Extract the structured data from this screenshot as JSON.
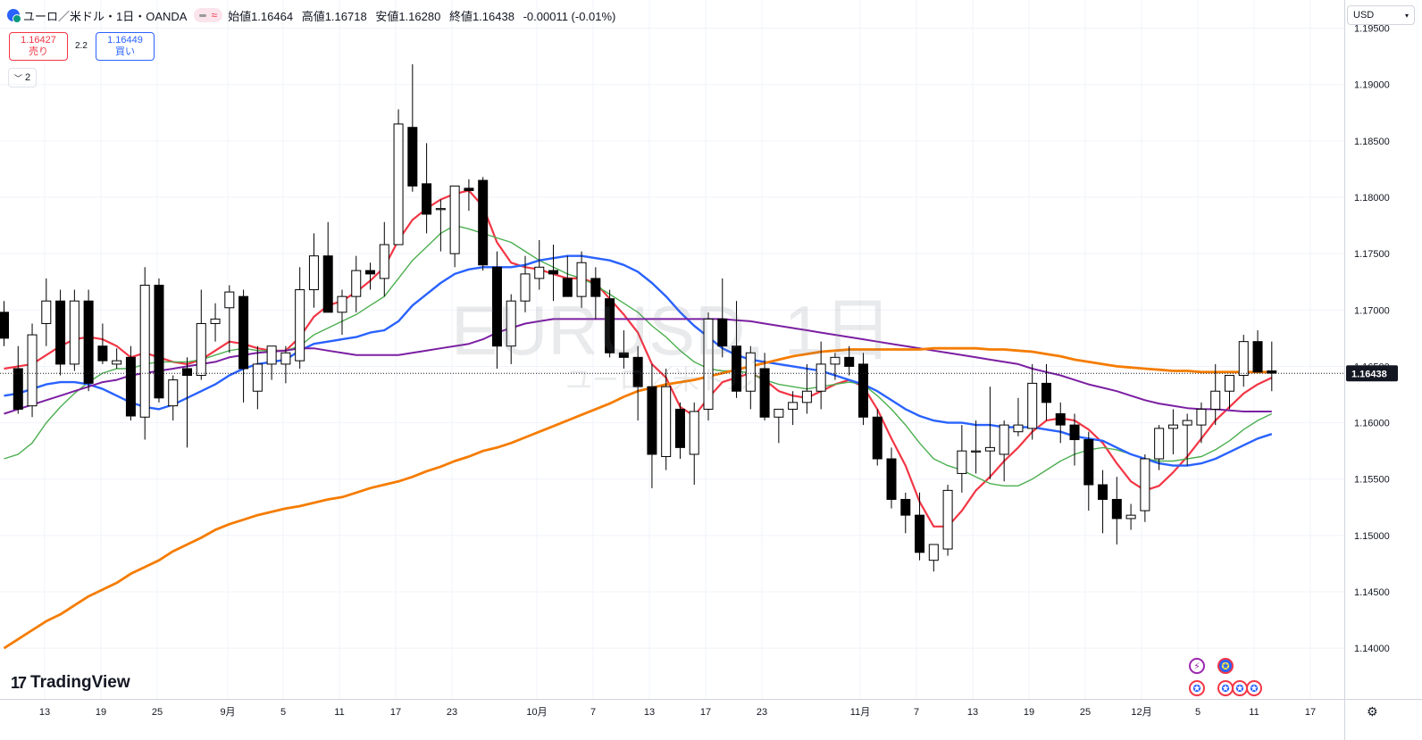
{
  "header": {
    "title": "ユーロ／米ドル・1日・OANDA",
    "approx_symbol": "≈",
    "ohlc": {
      "open": "始値1.16464",
      "high": "高値1.16718",
      "low": "安値1.16280",
      "close": "終値1.16438",
      "change": "-0.00011 (-0.01%)"
    }
  },
  "trade": {
    "sell_price": "1.16427",
    "sell_label": "売り",
    "spread": "2.2",
    "buy_price": "1.16449",
    "buy_label": "買い"
  },
  "indicators_toggle": {
    "count": "2"
  },
  "currency_button": {
    "label": "USD"
  },
  "watermark": {
    "main": "EURUSD, 1日",
    "sub": "ユーロ／米ドル"
  },
  "logo": {
    "text": "TradingView"
  },
  "chart_data": {
    "type": "candlestick",
    "price_axis": {
      "ticks": [
        "1.19500",
        "1.19000",
        "1.18500",
        "1.18000",
        "1.17500",
        "1.17000",
        "1.16500",
        "1.16000",
        "1.15500",
        "1.15000",
        "1.14500",
        "1.14000"
      ],
      "range": [
        1.1355,
        1.1975
      ],
      "current_price": "1.16438"
    },
    "time_axis": {
      "ticks": [
        "13",
        "19",
        "25",
        "9月",
        "5",
        "11",
        "17",
        "23",
        "10月",
        "7",
        "13",
        "17",
        "23",
        "11月",
        "7",
        "13",
        "19",
        "25",
        "12月",
        "5",
        "11",
        "17"
      ]
    },
    "candles": [
      [
        1.1698,
        1.1708,
        1.1668,
        1.1675
      ],
      [
        1.1648,
        1.1668,
        1.1608,
        1.1612
      ],
      [
        1.1615,
        1.1688,
        1.1605,
        1.1678
      ],
      [
        1.1688,
        1.1728,
        1.1668,
        1.1708
      ],
      [
        1.1708,
        1.1718,
        1.1642,
        1.1652
      ],
      [
        1.1652,
        1.1718,
        1.1646,
        1.1708
      ],
      [
        1.1708,
        1.1718,
        1.1628,
        1.1635
      ],
      [
        1.1668,
        1.1688,
        1.1652,
        1.1655
      ],
      [
        1.1652,
        1.1666,
        1.1648,
        1.1655
      ],
      [
        1.1658,
        1.1668,
        1.1602,
        1.1606
      ],
      [
        1.1605,
        1.1738,
        1.1585,
        1.1722
      ],
      [
        1.1722,
        1.1728,
        1.1618,
        1.1622
      ],
      [
        1.1615,
        1.1642,
        1.1602,
        1.1638
      ],
      [
        1.1648,
        1.1658,
        1.1578,
        1.1642
      ],
      [
        1.1642,
        1.1718,
        1.1638,
        1.1688
      ],
      [
        1.1688,
        1.1706,
        1.1672,
        1.1692
      ],
      [
        1.1702,
        1.1722,
        1.1662,
        1.1716
      ],
      [
        1.1712,
        1.1718,
        1.1618,
        1.1648
      ],
      [
        1.1628,
        1.1668,
        1.1612,
        1.1652
      ],
      [
        1.1652,
        1.1668,
        1.1638,
        1.1668
      ],
      [
        1.1652,
        1.1668,
        1.1635,
        1.1662
      ],
      [
        1.1655,
        1.1738,
        1.1648,
        1.1718
      ],
      [
        1.1718,
        1.1768,
        1.1702,
        1.1748
      ],
      [
        1.1748,
        1.1778,
        1.1698,
        1.1698
      ],
      [
        1.1698,
        1.1718,
        1.1678,
        1.1712
      ],
      [
        1.1712,
        1.1748,
        1.1698,
        1.1735
      ],
      [
        1.1735,
        1.1742,
        1.1718,
        1.1732
      ],
      [
        1.1728,
        1.1778,
        1.1712,
        1.1758
      ],
      [
        1.1758,
        1.1878,
        1.1758,
        1.1865
      ],
      [
        1.1862,
        1.1918,
        1.1805,
        1.181
      ],
      [
        1.1812,
        1.1848,
        1.1768,
        1.1785
      ],
      [
        1.179,
        1.1798,
        1.1752,
        1.179
      ],
      [
        1.175,
        1.1808,
        1.1738,
        1.181
      ],
      [
        1.1808,
        1.1816,
        1.1788,
        1.1806
      ],
      [
        1.1815,
        1.1818,
        1.1735,
        1.174
      ],
      [
        1.1738,
        1.1752,
        1.1648,
        1.1668
      ],
      [
        1.1668,
        1.1714,
        1.1652,
        1.1708
      ],
      [
        1.1708,
        1.1748,
        1.1698,
        1.1732
      ],
      [
        1.1728,
        1.1762,
        1.1718,
        1.1738
      ],
      [
        1.1735,
        1.1758,
        1.1708,
        1.1732
      ],
      [
        1.1728,
        1.1748,
        1.1712,
        1.1712
      ],
      [
        1.1712,
        1.1752,
        1.1702,
        1.1742
      ],
      [
        1.1728,
        1.1738,
        1.1692,
        1.1712
      ],
      [
        1.171,
        1.1718,
        1.1658,
        1.1662
      ],
      [
        1.1662,
        1.1682,
        1.1648,
        1.1658
      ],
      [
        1.1658,
        1.1668,
        1.1602,
        1.1632
      ],
      [
        1.1632,
        1.1652,
        1.1542,
        1.1572
      ],
      [
        1.157,
        1.1648,
        1.1558,
        1.1632
      ],
      [
        1.1612,
        1.1618,
        1.1568,
        1.1578
      ],
      [
        1.1572,
        1.1618,
        1.1545,
        1.161
      ],
      [
        1.1612,
        1.1698,
        1.1602,
        1.1692
      ],
      [
        1.1692,
        1.1728,
        1.1658,
        1.1668
      ],
      [
        1.1668,
        1.1708,
        1.1622,
        1.1628
      ],
      [
        1.1628,
        1.1668,
        1.1612,
        1.1662
      ],
      [
        1.1648,
        1.1662,
        1.1602,
        1.1605
      ],
      [
        1.1605,
        1.1612,
        1.1582,
        1.1612
      ],
      [
        1.1612,
        1.1628,
        1.1598,
        1.1618
      ],
      [
        1.1618,
        1.1652,
        1.1608,
        1.1628
      ],
      [
        1.1628,
        1.1672,
        1.1612,
        1.1652
      ],
      [
        1.1652,
        1.1662,
        1.1638,
        1.1658
      ],
      [
        1.1658,
        1.1668,
        1.1642,
        1.165
      ],
      [
        1.1652,
        1.1662,
        1.1598,
        1.1605
      ],
      [
        1.1605,
        1.1612,
        1.1562,
        1.1568
      ],
      [
        1.1568,
        1.1578,
        1.1524,
        1.1532
      ],
      [
        1.1532,
        1.1538,
        1.1502,
        1.1518
      ],
      [
        1.1518,
        1.1538,
        1.1478,
        1.1485
      ],
      [
        1.1478,
        1.1492,
        1.1468,
        1.1492
      ],
      [
        1.1488,
        1.1545,
        1.1482,
        1.154
      ],
      [
        1.1555,
        1.1598,
        1.1538,
        1.1575
      ],
      [
        1.1575,
        1.1602,
        1.1555,
        1.1575
      ],
      [
        1.1575,
        1.1632,
        1.155,
        1.1578
      ],
      [
        1.1572,
        1.1602,
        1.1548,
        1.1598
      ],
      [
        1.1592,
        1.1622,
        1.1588,
        1.1598
      ],
      [
        1.1595,
        1.1652,
        1.1585,
        1.1635
      ],
      [
        1.1635,
        1.1652,
        1.1602,
        1.1618
      ],
      [
        1.1608,
        1.1618,
        1.1582,
        1.1598
      ],
      [
        1.1598,
        1.1608,
        1.1562,
        1.1585
      ],
      [
        1.1585,
        1.1592,
        1.1522,
        1.1545
      ],
      [
        1.1545,
        1.1558,
        1.1502,
        1.1532
      ],
      [
        1.1532,
        1.1552,
        1.1492,
        1.1515
      ],
      [
        1.1515,
        1.1528,
        1.1505,
        1.1518
      ],
      [
        1.1522,
        1.1572,
        1.1512,
        1.1568
      ],
      [
        1.1568,
        1.1598,
        1.1558,
        1.1595
      ],
      [
        1.1595,
        1.1612,
        1.1572,
        1.1598
      ],
      [
        1.1598,
        1.1608,
        1.1562,
        1.1602
      ],
      [
        1.1598,
        1.1618,
        1.1582,
        1.1612
      ],
      [
        1.1612,
        1.1652,
        1.1598,
        1.1628
      ],
      [
        1.1628,
        1.1642,
        1.1612,
        1.1642
      ],
      [
        1.1642,
        1.1678,
        1.1632,
        1.1672
      ],
      [
        1.1672,
        1.1682,
        1.1645,
        1.1645
      ],
      [
        1.1646,
        1.1672,
        1.1628,
        1.1644
      ]
    ],
    "series": [
      {
        "color": "#f23645",
        "values": [
          1.1648,
          1.165,
          1.1652,
          1.166,
          1.1668,
          1.1674,
          1.1676,
          1.1674,
          1.1668,
          1.1658,
          1.1662,
          1.1658,
          1.1654,
          1.1652,
          1.1656,
          1.1664,
          1.1672,
          1.167,
          1.1666,
          1.1664,
          1.1664,
          1.1676,
          1.1694,
          1.1704,
          1.1708,
          1.1716,
          1.1726,
          1.1738,
          1.1762,
          1.178,
          1.179,
          1.1798,
          1.1803,
          1.1806,
          1.1792,
          1.176,
          1.1742,
          1.1738,
          1.1736,
          1.1732,
          1.1728,
          1.1728,
          1.1724,
          1.171,
          1.1696,
          1.168,
          1.1652,
          1.164,
          1.1614,
          1.1606,
          1.1622,
          1.1636,
          1.164,
          1.1644,
          1.1638,
          1.1628,
          1.1624,
          1.1622,
          1.1628,
          1.1634,
          1.1638,
          1.1632,
          1.1612,
          1.1586,
          1.1562,
          1.153,
          1.1508,
          1.1508,
          1.1522,
          1.154,
          1.1552,
          1.1566,
          1.1578,
          1.1592,
          1.1602,
          1.1604,
          1.1602,
          1.1594,
          1.1582,
          1.1564,
          1.1548,
          1.154,
          1.1544,
          1.1556,
          1.157,
          1.1586,
          1.1602,
          1.1614,
          1.1626,
          1.1634,
          1.164
        ]
      },
      {
        "color": "#4caf50",
        "values": [
          1.1568,
          1.1572,
          1.1582,
          1.16,
          1.1614,
          1.1626,
          1.1636,
          1.1644,
          1.1648,
          1.1648,
          1.1652,
          1.1654,
          1.1654,
          1.1654,
          1.1656,
          1.166,
          1.1664,
          1.1666,
          1.1664,
          1.1664,
          1.1664,
          1.1668,
          1.1678,
          1.1684,
          1.169,
          1.1696,
          1.1704,
          1.1712,
          1.1728,
          1.1744,
          1.1756,
          1.1768,
          1.1775,
          1.1772,
          1.1768,
          1.1764,
          1.176,
          1.1752,
          1.1744,
          1.1738,
          1.1732,
          1.1728,
          1.1722,
          1.1714,
          1.1706,
          1.1698,
          1.1686,
          1.1676,
          1.1664,
          1.1654,
          1.1648,
          1.1646,
          1.1646,
          1.1644,
          1.1638,
          1.1634,
          1.1632,
          1.163,
          1.1632,
          1.1634,
          1.1636,
          1.1634,
          1.1624,
          1.1612,
          1.1598,
          1.1582,
          1.1568,
          1.1562,
          1.1558,
          1.1552,
          1.1546,
          1.1544,
          1.1544,
          1.155,
          1.1558,
          1.1566,
          1.1572,
          1.1576,
          1.1578,
          1.1576,
          1.1572,
          1.1568,
          1.1566,
          1.1566,
          1.1568,
          1.157,
          1.1576,
          1.1584,
          1.1594,
          1.1602,
          1.1608
        ]
      },
      {
        "color": "#2962ff",
        "values": [
          1.1624,
          1.1626,
          1.163,
          1.1634,
          1.1636,
          1.1636,
          1.1634,
          1.163,
          1.1624,
          1.1618,
          1.1614,
          1.1612,
          1.1616,
          1.1622,
          1.1628,
          1.1634,
          1.1642,
          1.1648,
          1.1652,
          1.1654,
          1.1656,
          1.1664,
          1.167,
          1.1672,
          1.1674,
          1.1676,
          1.168,
          1.1682,
          1.169,
          1.1704,
          1.1714,
          1.1724,
          1.1732,
          1.1736,
          1.1738,
          1.1738,
          1.1738,
          1.174,
          1.1744,
          1.1746,
          1.1748,
          1.1748,
          1.1746,
          1.1744,
          1.174,
          1.1734,
          1.1724,
          1.1712,
          1.1698,
          1.1686,
          1.1676,
          1.1666,
          1.166,
          1.1656,
          1.1654,
          1.1652,
          1.165,
          1.1648,
          1.1646,
          1.1642,
          1.1638,
          1.1634,
          1.1628,
          1.162,
          1.1612,
          1.1606,
          1.1602,
          1.16,
          1.16,
          1.1598,
          1.1598,
          1.1596,
          1.1596,
          1.1596,
          1.1594,
          1.1592,
          1.1588,
          1.1586,
          1.1584,
          1.1578,
          1.1572,
          1.1568,
          1.1564,
          1.1562,
          1.1562,
          1.1564,
          1.1568,
          1.1574,
          1.158,
          1.1586,
          1.159
        ]
      },
      {
        "color": "#7b1fa2",
        "values": [
          1.1608,
          1.1612,
          1.1616,
          1.162,
          1.1624,
          1.1628,
          1.1632,
          1.1636,
          1.1638,
          1.1642,
          1.1644,
          1.1646,
          1.1648,
          1.165,
          1.1652,
          1.1654,
          1.1658,
          1.166,
          1.1662,
          1.1663,
          1.1664,
          1.1666,
          1.1666,
          1.1664,
          1.1662,
          1.166,
          1.166,
          1.166,
          1.166,
          1.1662,
          1.1664,
          1.1666,
          1.1668,
          1.167,
          1.1674,
          1.168,
          1.1684,
          1.1688,
          1.169,
          1.1692,
          1.1692,
          1.1692,
          1.1692,
          1.1692,
          1.1692,
          1.1692,
          1.1692,
          1.1692,
          1.1692,
          1.1692,
          1.1692,
          1.1692,
          1.1691,
          1.169,
          1.1688,
          1.1686,
          1.1684,
          1.1682,
          1.168,
          1.1678,
          1.1676,
          1.1674,
          1.1672,
          1.167,
          1.1668,
          1.1666,
          1.1664,
          1.1662,
          1.166,
          1.1658,
          1.1656,
          1.1654,
          1.1652,
          1.1648,
          1.1645,
          1.1642,
          1.1638,
          1.1634,
          1.1631,
          1.1628,
          1.1624,
          1.162,
          1.1617,
          1.1615,
          1.1613,
          1.1612,
          1.1612,
          1.1611,
          1.161,
          1.161,
          1.161
        ]
      },
      {
        "color": "#f57c00",
        "values": [
          1.14,
          1.1408,
          1.1416,
          1.1424,
          1.143,
          1.1438,
          1.1446,
          1.1452,
          1.1458,
          1.1466,
          1.1472,
          1.1478,
          1.1486,
          1.1492,
          1.1498,
          1.1505,
          1.151,
          1.1514,
          1.1518,
          1.1521,
          1.1524,
          1.1526,
          1.1529,
          1.1532,
          1.1534,
          1.1538,
          1.1542,
          1.1545,
          1.1548,
          1.1552,
          1.1557,
          1.1561,
          1.1566,
          1.157,
          1.1575,
          1.1578,
          1.1582,
          1.1587,
          1.1592,
          1.1597,
          1.1602,
          1.1607,
          1.1612,
          1.1617,
          1.1623,
          1.1628,
          1.1631,
          1.1634,
          1.1636,
          1.1638,
          1.1641,
          1.1644,
          1.1647,
          1.165,
          1.1653,
          1.1656,
          1.1659,
          1.1661,
          1.1663,
          1.1664,
          1.1665,
          1.1665,
          1.1665,
          1.1665,
          1.1665,
          1.1665,
          1.1666,
          1.1666,
          1.1666,
          1.1666,
          1.1665,
          1.1665,
          1.1664,
          1.1663,
          1.1661,
          1.1659,
          1.1656,
          1.1654,
          1.1652,
          1.165,
          1.1649,
          1.1648,
          1.1647,
          1.1646,
          1.1646,
          1.1645,
          1.1645,
          1.1645,
          1.1645,
          1.1645,
          1.1645
        ]
      }
    ]
  },
  "events": {
    "icons": [
      {
        "kind": "ev-purple",
        "glyph": "⚡"
      },
      {
        "kind": "ev-eu",
        "glyph": "✪"
      },
      {
        "kind": "ev-us",
        "glyph": "✪"
      },
      {
        "kind": "ev-us",
        "glyph": "✪"
      },
      {
        "kind": "ev-us",
        "glyph": "✪"
      },
      {
        "kind": "ev-us",
        "glyph": "✪"
      }
    ]
  }
}
